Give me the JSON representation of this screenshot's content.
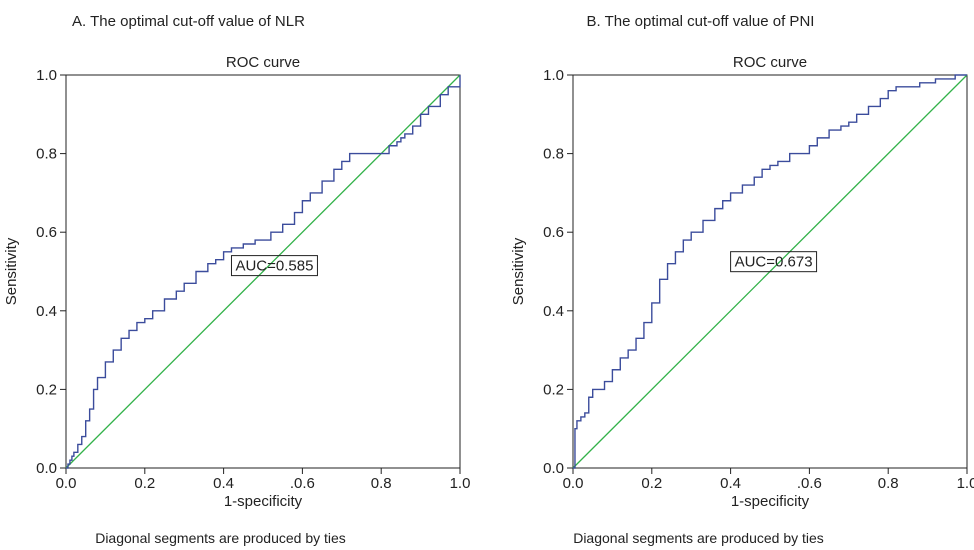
{
  "panels": [
    {
      "panel_title": "A. The optimal cut-off value of NLR",
      "footnote": "Diagonal segments are produced by ties"
    },
    {
      "panel_title": "B. The optimal cut-off value of PNI",
      "footnote": "Diagonal segments are produced by ties"
    }
  ],
  "chart_data": [
    {
      "type": "line",
      "title": "ROC curve",
      "xlabel": "1-specificity",
      "ylabel": "Sensitivity",
      "xlim": [
        0,
        1
      ],
      "ylim": [
        0,
        1
      ],
      "x_tick_labels": [
        "0.0",
        "0.2",
        "0.4",
        ".0.6",
        "0.8",
        "1.0"
      ],
      "y_tick_labels": [
        "0.0",
        "0.2",
        "0.4",
        "0.6",
        "0.8",
        "1.0"
      ],
      "annotation": "AUC=0.585",
      "colors": {
        "roc": "#3b4c9c",
        "reference": "#33b24a"
      },
      "series": [
        {
          "x": [
            0,
            0.005,
            0.01,
            0.015,
            0.02,
            0.03,
            0.04,
            0.05,
            0.06,
            0.07,
            0.08,
            0.1,
            0.12,
            0.14,
            0.16,
            0.18,
            0.2,
            0.22,
            0.25,
            0.28,
            0.3,
            0.33,
            0.36,
            0.38,
            0.4,
            0.42,
            0.45,
            0.48,
            0.52,
            0.55,
            0.58,
            0.6,
            0.62,
            0.65,
            0.68,
            0.7,
            0.72,
            0.75,
            0.78,
            0.8,
            0.82,
            0.84,
            0.85,
            0.86,
            0.88,
            0.9,
            0.92,
            0.95,
            0.97,
            1.0
          ],
          "y": [
            0,
            0.01,
            0.02,
            0.03,
            0.04,
            0.06,
            0.08,
            0.12,
            0.15,
            0.2,
            0.23,
            0.27,
            0.3,
            0.33,
            0.35,
            0.37,
            0.38,
            0.4,
            0.43,
            0.45,
            0.47,
            0.5,
            0.52,
            0.53,
            0.55,
            0.56,
            0.57,
            0.58,
            0.6,
            0.62,
            0.65,
            0.68,
            0.7,
            0.73,
            0.76,
            0.78,
            0.8,
            0.8,
            0.8,
            0.8,
            0.82,
            0.83,
            0.84,
            0.85,
            0.87,
            0.9,
            0.92,
            0.95,
            0.97,
            1.0
          ]
        },
        {
          "x": [
            0,
            1
          ],
          "y": [
            0,
            1
          ]
        }
      ]
    },
    {
      "type": "line",
      "title": "ROC curve",
      "xlabel": "1-specificity",
      "ylabel": "Sensitivity",
      "xlim": [
        0,
        1
      ],
      "ylim": [
        0,
        1
      ],
      "x_tick_labels": [
        "0.0",
        "0.2",
        "0.4",
        ".0.6",
        "0.8",
        "1.0"
      ],
      "y_tick_labels": [
        "0.0",
        "0.2",
        "0.4",
        "0.6",
        "0.8",
        "1.0"
      ],
      "annotation": "AUC=0.673",
      "colors": {
        "roc": "#3b4c9c",
        "reference": "#33b24a"
      },
      "series": [
        {
          "x": [
            0,
            0.005,
            0.01,
            0.02,
            0.03,
            0.04,
            0.05,
            0.06,
            0.08,
            0.1,
            0.12,
            0.14,
            0.16,
            0.18,
            0.2,
            0.22,
            0.24,
            0.26,
            0.28,
            0.3,
            0.33,
            0.36,
            0.38,
            0.4,
            0.43,
            0.46,
            0.48,
            0.5,
            0.52,
            0.55,
            0.58,
            0.6,
            0.62,
            0.65,
            0.68,
            0.7,
            0.72,
            0.75,
            0.78,
            0.8,
            0.82,
            0.85,
            0.88,
            0.9,
            0.92,
            0.95,
            0.97,
            1.0
          ],
          "y": [
            0,
            0.1,
            0.12,
            0.13,
            0.14,
            0.18,
            0.2,
            0.2,
            0.22,
            0.25,
            0.28,
            0.3,
            0.33,
            0.37,
            0.42,
            0.48,
            0.52,
            0.55,
            0.58,
            0.6,
            0.63,
            0.66,
            0.68,
            0.7,
            0.72,
            0.74,
            0.76,
            0.77,
            0.78,
            0.8,
            0.8,
            0.82,
            0.84,
            0.86,
            0.87,
            0.88,
            0.9,
            0.92,
            0.94,
            0.96,
            0.97,
            0.97,
            0.98,
            0.98,
            0.99,
            0.99,
            1.0,
            1.0
          ]
        },
        {
          "x": [
            0,
            1
          ],
          "y": [
            0,
            1
          ]
        }
      ]
    }
  ]
}
